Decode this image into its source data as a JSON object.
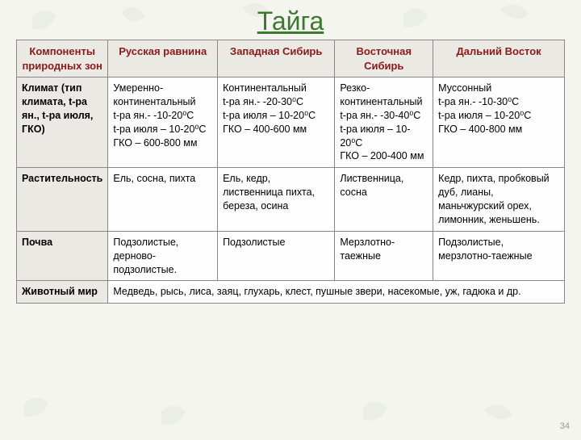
{
  "title": "Тайга",
  "page_number": "34",
  "colors": {
    "title_color": "#3b7a2d",
    "header_text": "#8b1a1a",
    "header_bg": "#ebe9e4",
    "border": "#888888",
    "background": "#f5f5f0"
  },
  "table": {
    "columns": [
      "Компоненты природных зон",
      "Русская равнина",
      "Западная Сибирь",
      "Восточная Сибирь",
      "Дальний Восток"
    ],
    "rows": [
      {
        "label": "Климат (тип климата, t-ра ян., t-ра июля, ГКО)",
        "cells": [
          "Умеренно-континентальный\nt-ра ян.- -10-20⁰С\nt-ра июля – 10-20⁰С\nГКО – 600-800 мм",
          "Континентальный\nt-ра ян.- -20-30⁰С\nt-ра июля – 10-20⁰С\nГКО – 400-600 мм",
          "Резко-континентальный\nt-ра ян.- -30-40⁰С\nt-ра июля – 10-20⁰С\nГКО – 200-400 мм",
          "Муссонный\nt-ра ян.- -10-30⁰С\nt-ра июля – 10-20⁰С\nГКО – 400-800 мм"
        ]
      },
      {
        "label": "Растительность",
        "cells": [
          "Ель, сосна, пихта",
          "Ель, кедр, лиственница пихта, береза, осина",
          "Лиственница, сосна",
          "Кедр, пихта, пробковый дуб, лианы, маньчжурский орех, лимонник, женьшень."
        ]
      },
      {
        "label": "Почва",
        "cells": [
          "Подзолистые, дерново-подзолистые.",
          "Подзолистые",
          "Мерзлотно-таежные",
          "Подзолистые, мерзлотно-таежные"
        ]
      },
      {
        "label": "Животный мир",
        "merged": "Медведь, рысь, лиса, заяц, глухарь, клест, пушные звери, насекомые, уж, гадюка и др."
      }
    ]
  }
}
